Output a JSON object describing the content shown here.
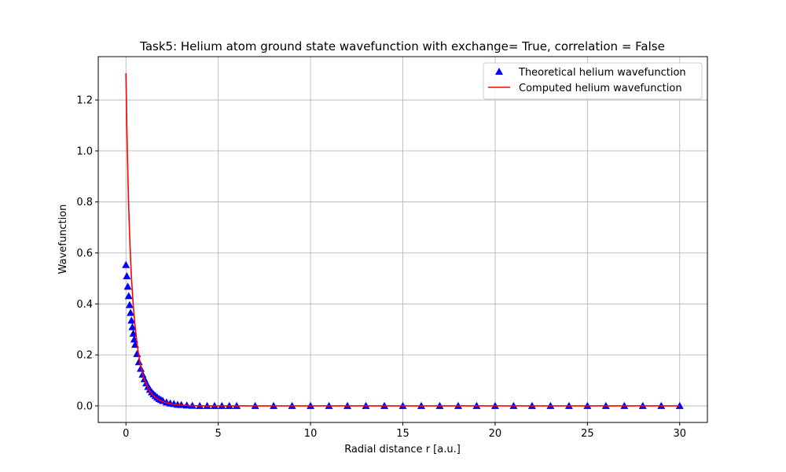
{
  "chart_data": {
    "type": "line",
    "title": "Task5: Helium atom ground state wavefunction with exchange= True, correlation = False",
    "xlabel": "Radial distance r [a.u.]",
    "ylabel": "Wavefunction",
    "xlim": [
      -1.5,
      31.5
    ],
    "ylim": [
      -0.065,
      1.37
    ],
    "xticks": [
      0,
      5,
      10,
      15,
      20,
      25,
      30
    ],
    "yticks": [
      0.0,
      0.2,
      0.4,
      0.6,
      0.8,
      1.0,
      1.2
    ],
    "xtick_labels": [
      "0",
      "5",
      "10",
      "15",
      "20",
      "25",
      "30"
    ],
    "ytick_labels": [
      "0.0",
      "0.2",
      "0.4",
      "0.6",
      "0.8",
      "1.0",
      "1.2"
    ],
    "grid": true,
    "legend_position": "top-right",
    "series": [
      {
        "name": "Theoretical helium wavefunction",
        "kind": "scatter",
        "marker": "triangle-up",
        "color": "#0000ff",
        "x": [
          0,
          0.05,
          0.1,
          0.15,
          0.2,
          0.25,
          0.3,
          0.35,
          0.4,
          0.45,
          0.5,
          0.6,
          0.7,
          0.8,
          0.9,
          1.0,
          1.1,
          1.2,
          1.3,
          1.4,
          1.5,
          1.6,
          1.7,
          1.8,
          1.9,
          2.0,
          2.2,
          2.4,
          2.6,
          2.8,
          3.0,
          3.3,
          3.6,
          4.0,
          4.4,
          4.8,
          5.2,
          5.6,
          6.0,
          7,
          8,
          9,
          10,
          11,
          12,
          13,
          14,
          15,
          16,
          17,
          18,
          19,
          20,
          21,
          22,
          23,
          24,
          25,
          26,
          27,
          28,
          29,
          30
        ],
        "y": [
          0.553,
          0.509,
          0.468,
          0.431,
          0.396,
          0.365,
          0.335,
          0.309,
          0.284,
          0.261,
          0.24,
          0.204,
          0.172,
          0.146,
          0.123,
          0.105,
          0.089,
          0.075,
          0.064,
          0.054,
          0.046,
          0.039,
          0.033,
          0.028,
          0.024,
          0.02,
          0.014,
          0.01,
          0.008,
          0.005,
          0.004,
          0.002,
          0.001,
          0.0,
          0.0,
          0.0,
          0.0,
          0.0,
          0.0,
          0.0,
          0.0,
          0.0,
          0.0,
          0.0,
          0.0,
          0.0,
          0.0,
          0.0,
          0.0,
          0.0,
          0.0,
          0.0,
          0.0,
          0.0,
          0.0,
          0.0,
          0.0,
          0.0,
          0.0,
          0.0,
          0.0,
          0.0,
          0.0
        ]
      },
      {
        "name": "Computed helium wavefunction",
        "kind": "line",
        "color": "#ff0000",
        "x": [
          0,
          0.05,
          0.1,
          0.15,
          0.2,
          0.25,
          0.3,
          0.4,
          0.5,
          0.6,
          0.7,
          0.8,
          0.9,
          1.0,
          1.2,
          1.4,
          1.6,
          1.8,
          2.0,
          2.3,
          2.6,
          3.0,
          3.5,
          4.0,
          5.0,
          6.0,
          8,
          10,
          15,
          20,
          25,
          30
        ],
        "y": [
          1.305,
          1.09,
          0.92,
          0.78,
          0.67,
          0.58,
          0.5,
          0.39,
          0.31,
          0.245,
          0.195,
          0.157,
          0.127,
          0.103,
          0.069,
          0.047,
          0.033,
          0.023,
          0.016,
          0.01,
          0.006,
          0.003,
          0.001,
          0.0,
          0.0,
          0.0,
          0.0,
          0.0,
          0.0,
          0.0,
          0.0,
          0.0
        ]
      }
    ]
  }
}
